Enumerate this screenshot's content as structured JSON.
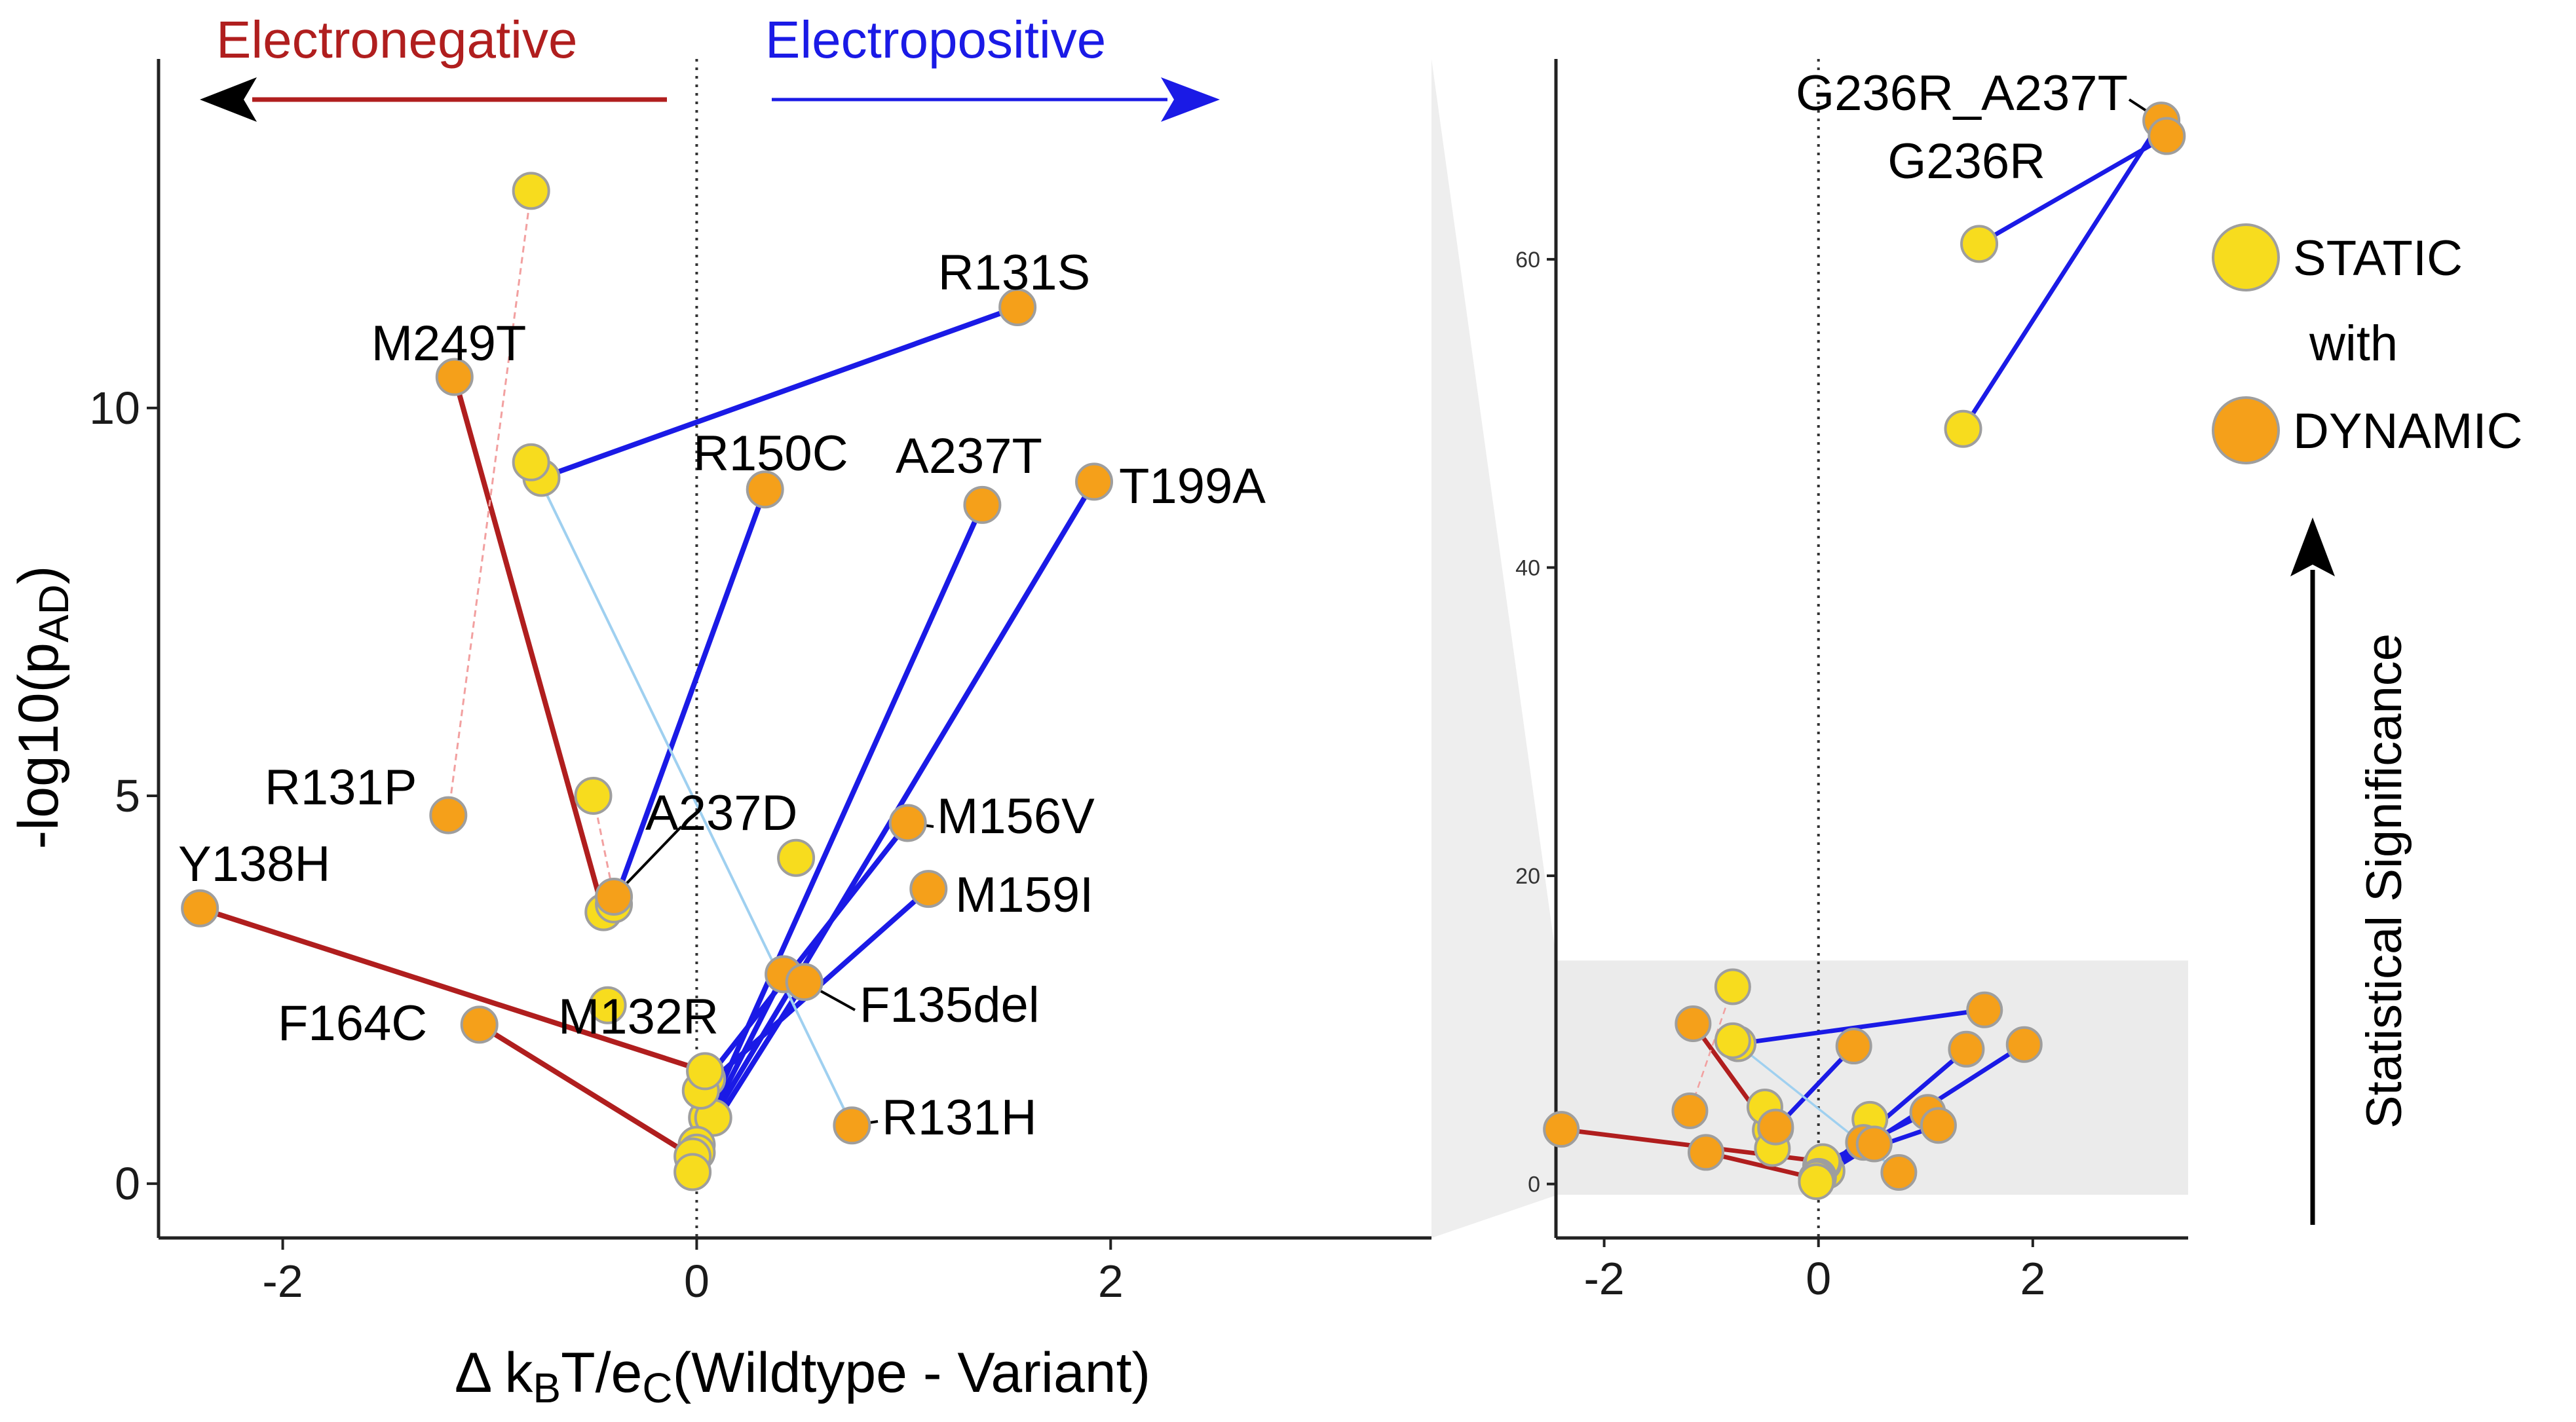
{
  "chart_data": [
    {
      "type": "scatter",
      "panel": "main",
      "xlabel_parts": [
        "Δ k",
        "B",
        "T/e",
        "C",
        "(Wildtype - Variant)"
      ],
      "ylabel_parts": [
        "-log10(p",
        "AD",
        ")"
      ],
      "xlim": [
        -2.6,
        3.55
      ],
      "ylim": [
        -0.7,
        14.5
      ],
      "x_ticks": [
        -2,
        0,
        2
      ],
      "x_tick_labels": [
        "-2",
        "0",
        "2"
      ],
      "y_ticks": [
        0,
        5,
        10
      ],
      "y_tick_labels": [
        "0",
        "5",
        "10"
      ],
      "reference_line_x": 0,
      "annotations": {
        "electronegative": "Electronegative",
        "electropositive": "Electropositive"
      },
      "colors": {
        "static_fill": "#f7dc1e",
        "dynamic_fill": "#f5a01a",
        "point_stroke": "#9e9e9e",
        "electronegative": "#b01e1e",
        "electropositive": "#1a1ae6",
        "faint_red": "#f2a0a0",
        "faint_blue": "#9fd0f0"
      },
      "variants": [
        {
          "label": "R131S",
          "static": [
            -0.75,
            9.1
          ],
          "dynamic": [
            1.55,
            11.3
          ],
          "shift": "positive"
        },
        {
          "label": "M249T",
          "static": [
            -0.45,
            3.5
          ],
          "dynamic": [
            -1.17,
            10.4
          ],
          "shift": "negative"
        },
        {
          "label": "R150C",
          "static": [
            -0.4,
            3.6
          ],
          "dynamic": [
            0.33,
            8.95
          ],
          "shift": "positive"
        },
        {
          "label": "A237T",
          "static": [
            0.05,
            0.85
          ],
          "dynamic": [
            1.38,
            8.75
          ],
          "shift": "positive"
        },
        {
          "label": "T199A",
          "static": [
            0.08,
            0.85
          ],
          "dynamic": [
            1.92,
            9.05
          ],
          "shift": "positive"
        },
        {
          "label": "R131P",
          "static": [
            -0.8,
            12.8
          ],
          "dynamic": [
            -1.2,
            4.75
          ],
          "shift": "faint-negative"
        },
        {
          "label": "A237D",
          "static": [
            -0.5,
            5.0
          ],
          "dynamic": [
            -0.4,
            3.7
          ],
          "shift": "faint-negative"
        },
        {
          "label": "M156V",
          "static": [
            0.05,
            1.35
          ],
          "dynamic": [
            1.02,
            4.65
          ],
          "shift": "positive"
        },
        {
          "label": "M159I",
          "static": [
            0.02,
            1.2
          ],
          "dynamic": [
            1.12,
            3.8
          ],
          "shift": "positive"
        },
        {
          "label": "Y138H",
          "static": [
            0.04,
            1.45
          ],
          "dynamic": [
            -2.4,
            3.55
          ],
          "shift": "negative"
        },
        {
          "label": "M132R",
          "static": [
            0.0,
            0.5
          ],
          "dynamic": [
            0.42,
            2.7
          ],
          "shift": "positive"
        },
        {
          "label": "F135del",
          "static": [
            0.0,
            0.4
          ],
          "dynamic": [
            0.52,
            2.6
          ],
          "shift": "positive"
        },
        {
          "label": "F164C",
          "static": [
            -0.02,
            0.35
          ],
          "dynamic": [
            -1.05,
            2.05
          ],
          "shift": "negative"
        },
        {
          "label": "R131H",
          "static": [
            -0.8,
            9.3
          ],
          "dynamic": [
            0.75,
            0.75
          ],
          "shift": "faint-positive"
        }
      ],
      "extra_static_points": [
        [
          0.48,
          4.2
        ],
        [
          -0.43,
          2.3
        ],
        [
          -0.02,
          0.15
        ]
      ]
    },
    {
      "type": "scatter",
      "panel": "inset",
      "xlim": [
        -2.45,
        3.45
      ],
      "ylim": [
        -3.5,
        73
      ],
      "x_ticks": [
        -2,
        0,
        2
      ],
      "x_tick_labels": [
        "-2",
        "0",
        "2"
      ],
      "y_ticks": [
        0,
        20,
        40,
        60
      ],
      "y_tick_labels": [
        "0",
        "20",
        "40",
        "60"
      ],
      "reference_line_x": 0,
      "highlight_y_range": [
        -0.7,
        14.5
      ],
      "labeled_variants": [
        {
          "label": "G236R_A237T",
          "static": [
            1.35,
            49
          ],
          "dynamic": [
            3.2,
            69
          ]
        },
        {
          "label": "G236R",
          "static": [
            1.5,
            61
          ],
          "dynamic": [
            3.25,
            68
          ]
        }
      ]
    }
  ],
  "legend": {
    "static": "STATIC",
    "with": "with",
    "dynamic": "DYNAMIC"
  },
  "side_label": "Statistical Significance"
}
